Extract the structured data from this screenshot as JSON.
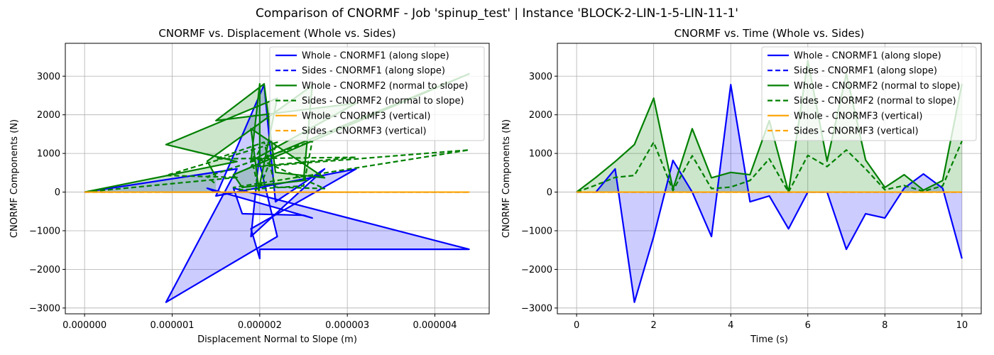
{
  "suptitle": "Comparison of CNORMF - Job 'spinup_test' | Instance 'BLOCK-2-LIN-1-5-LIN-11-1'",
  "colors": {
    "f1": "#0000ff",
    "f2": "#008000",
    "f3": "#ffa500",
    "fill1": "#0000ff",
    "fill2": "#008000",
    "grid": "#b0b0b0"
  },
  "chart_data": [
    {
      "type": "line",
      "title": "CNORMF vs. Displacement (Whole vs. Sides)",
      "xlabel": "Displacement Normal to Slope (m)",
      "ylabel": "CNORMF Components (N)",
      "xlim": [
        -2.2e-07,
        4.62e-06
      ],
      "ylim": [
        -3150,
        3850
      ],
      "xticks": [
        0,
        1e-06,
        2e-06,
        3e-06,
        4e-06
      ],
      "xtick_labels": [
        "0.000000",
        "0.000001",
        "0.000002",
        "0.000003",
        "0.000004"
      ],
      "yticks": [
        -3000,
        -2000,
        -1000,
        0,
        1000,
        2000,
        3000
      ],
      "grid": true,
      "legend_position": "top-right",
      "x": [
        0,
        1.74e-06,
        9.3e-07,
        2.2e-06,
        1.99e-06,
        1.9e-06,
        2.74e-06,
        2.18e-06,
        2.05e-06,
        1.5e-06,
        3.1e-06,
        1.9e-06,
        2e-06,
        2e-06,
        4.39e-06,
        1.7e-06,
        1.8e-06,
        2.5e-06,
        2.6e-06,
        1.4e-06,
        1.5e-06
      ],
      "series": [
        {
          "name": "Whole - CNORMF1 (along slope)",
          "values": [
            0,
            600,
            -2850,
            -1150,
            820,
            -1150,
            600,
            -250,
            2780,
            -100,
            600,
            -950,
            -1720,
            -1480,
            -1480,
            100,
            -560,
            -600,
            -670,
            100,
            0
          ]
        },
        {
          "name": "Sides - CNORMF1 (along slope)",
          "values": [
            0,
            0,
            0,
            0,
            0,
            0,
            0,
            0,
            0,
            0,
            0,
            0,
            0,
            0,
            0,
            0,
            0,
            0,
            0,
            0,
            0
          ]
        },
        {
          "name": "Whole - CNORMF2 (normal to slope)",
          "values": [
            0,
            790,
            1230,
            2430,
            80,
            1640,
            370,
            510,
            2800,
            1850,
            2300,
            800,
            2800,
            830,
            3060,
            450,
            120,
            300,
            2760,
            800,
            400
          ]
        },
        {
          "name": "Sides - CNORMF2 (normal to slope)",
          "values": [
            0,
            380,
            430,
            1290,
            40,
            940,
            90,
            130,
            1290,
            860,
            900,
            650,
            1100,
            660,
            1090,
            120,
            60,
            160,
            1320,
            400,
            200
          ]
        },
        {
          "name": "Whole - CNORMF3 (vertical)",
          "values": [
            0,
            0,
            0,
            0,
            0,
            0,
            0,
            0,
            0,
            0,
            0,
            0,
            0,
            0,
            0,
            0,
            0,
            0,
            0,
            0,
            0
          ]
        },
        {
          "name": "Sides - CNORMF3 (vertical)",
          "values": [
            0,
            0,
            0,
            0,
            0,
            0,
            0,
            0,
            0,
            0,
            0,
            0,
            0,
            0,
            0,
            0,
            0,
            0,
            0,
            0,
            0
          ]
        }
      ]
    },
    {
      "type": "line",
      "title": "CNORMF vs. Time (Whole vs. Sides)",
      "xlabel": "Time (s)",
      "ylabel": "CNORMF Components (N)",
      "xlim": [
        -0.5,
        10.5
      ],
      "ylim": [
        -3150,
        3850
      ],
      "xticks": [
        0,
        2,
        4,
        6,
        8,
        10
      ],
      "xtick_labels": [
        "0",
        "2",
        "4",
        "6",
        "8",
        "10"
      ],
      "yticks": [
        -3000,
        -2000,
        -1000,
        0,
        1000,
        2000,
        3000
      ],
      "grid": true,
      "legend_position": "top-right",
      "x": [
        0,
        0.5,
        1,
        1.5,
        2,
        2.5,
        3,
        3.5,
        4,
        4.5,
        5,
        5.5,
        6,
        6.5,
        7,
        7.5,
        8,
        8.5,
        9,
        9.5,
        10
      ],
      "series": [
        {
          "name": "Whole - CNORMF1 (along slope)",
          "values": [
            0,
            0,
            600,
            -2850,
            -1150,
            820,
            0,
            -1150,
            2780,
            -250,
            -100,
            -950,
            0,
            0,
            -1480,
            -560,
            -670,
            100,
            470,
            100,
            -1720
          ]
        },
        {
          "name": "Sides - CNORMF1 (along slope)",
          "values": [
            0,
            0,
            0,
            0,
            0,
            0,
            0,
            0,
            0,
            0,
            0,
            0,
            0,
            0,
            0,
            0,
            0,
            0,
            0,
            0,
            0
          ]
        },
        {
          "name": "Whole - CNORMF2 (normal to slope)",
          "values": [
            0,
            380,
            790,
            1230,
            2430,
            80,
            1640,
            370,
            510,
            450,
            1850,
            0,
            3400,
            800,
            3060,
            830,
            120,
            450,
            50,
            300,
            2800
          ]
        },
        {
          "name": "Sides - CNORMF2 (normal to slope)",
          "values": [
            0,
            180,
            380,
            430,
            1290,
            40,
            940,
            90,
            130,
            300,
            860,
            0,
            950,
            660,
            1090,
            600,
            60,
            170,
            20,
            160,
            1320
          ]
        },
        {
          "name": "Whole - CNORMF3 (vertical)",
          "values": [
            0,
            0,
            0,
            0,
            0,
            0,
            0,
            0,
            0,
            0,
            0,
            0,
            0,
            0,
            0,
            0,
            0,
            0,
            0,
            0,
            0
          ]
        },
        {
          "name": "Sides - CNORMF3 (vertical)",
          "values": [
            0,
            0,
            0,
            0,
            0,
            0,
            0,
            0,
            0,
            0,
            0,
            0,
            0,
            0,
            0,
            0,
            0,
            0,
            0,
            0,
            0
          ]
        }
      ]
    }
  ]
}
